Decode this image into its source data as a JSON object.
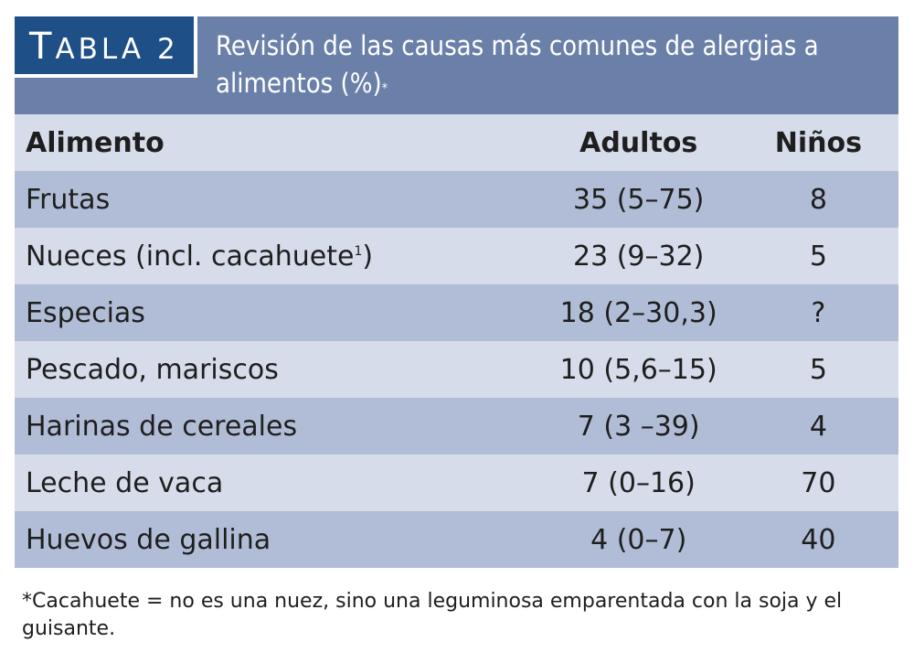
{
  "header": {
    "tag_first": "T",
    "tag_rest": "ABLA 2",
    "title": "Revisión de las causas más comunes de alergias a alimentos (%)",
    "title_mark": "*"
  },
  "table": {
    "columns": [
      "Alimento",
      "Adultos",
      "Niños"
    ],
    "rows": [
      {
        "food": "Frutas",
        "adults": "35 (5–75)",
        "children": "8"
      },
      {
        "food": "Nueces (incl. cacahuete",
        "food_mark": "1",
        "food_end": ")",
        "adults": "23 (9–32)",
        "children": "5"
      },
      {
        "food": "Especias",
        "adults": "18 (2–30,3)",
        "children": "?"
      },
      {
        "food": "Pescado, mariscos",
        "adults": "10 (5,6–15)",
        "children": "5"
      },
      {
        "food": "Harinas de cereales",
        "adults": "7 (3 –39)",
        "children": "4"
      },
      {
        "food": "Leche de vaca",
        "adults": "7 (0–16)",
        "children": "70"
      },
      {
        "food": "Huevos de gallina",
        "adults": "4 (0–7)",
        "children": "40"
      }
    ]
  },
  "footnote": "*Cacahuete = no es una nuez, sino una leguminosa emparentada con la soja y el guisante.",
  "colors": {
    "header_bg": "#6b80a9",
    "tag_bg": "#1f4f87",
    "row_dark": "#b1bdd6",
    "row_light": "#d6dcea"
  }
}
